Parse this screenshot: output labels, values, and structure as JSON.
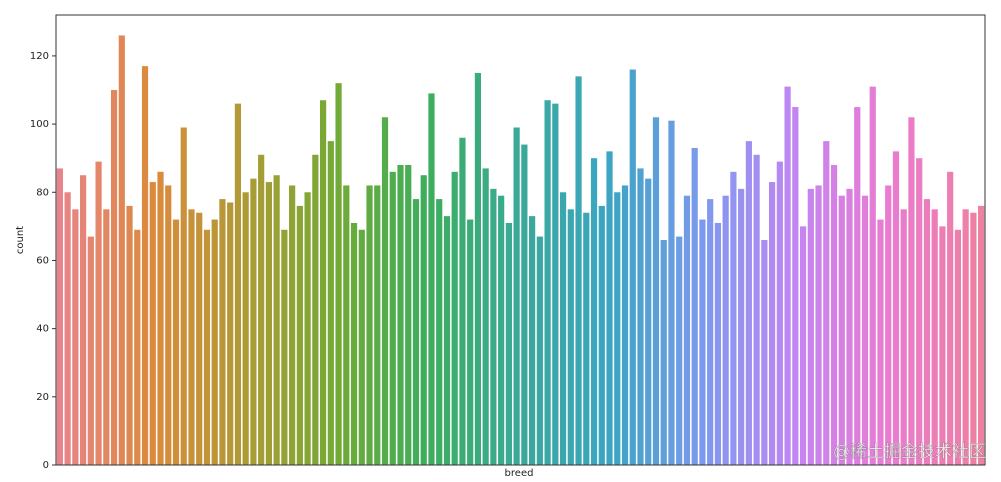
{
  "chart_data": {
    "type": "bar",
    "x_label": "breed",
    "y_label": "count",
    "watermark": "@稀土掘金技术社区",
    "categories": [
      null,
      null,
      null,
      null,
      null,
      null,
      null,
      null,
      null,
      null,
      null,
      null,
      null,
      null,
      null,
      null,
      null,
      null,
      null,
      null,
      null,
      null,
      null,
      null,
      null,
      null,
      null,
      null,
      null,
      null,
      null,
      null,
      null,
      null,
      null,
      null,
      null,
      null,
      null,
      null,
      null,
      null,
      null,
      null,
      null,
      null,
      null,
      null,
      null,
      null,
      null,
      null,
      null,
      null,
      null,
      null,
      null,
      null,
      null,
      null,
      null,
      null,
      null,
      null,
      null,
      null,
      null,
      null,
      null,
      null,
      null,
      null,
      null,
      null,
      null,
      null,
      null,
      null,
      null,
      null,
      null,
      null,
      null,
      null,
      null,
      null,
      null,
      null,
      null,
      null,
      null,
      null,
      null,
      null,
      null,
      null,
      null,
      null,
      null,
      null,
      null,
      null,
      null,
      null,
      null,
      null,
      null,
      null,
      null,
      null,
      null,
      null,
      null,
      null,
      null,
      null,
      null,
      null,
      null,
      null
    ],
    "values": [
      87,
      80,
      75,
      85,
      67,
      89,
      75,
      110,
      126,
      76,
      69,
      117,
      83,
      86,
      82,
      72,
      99,
      75,
      74,
      69,
      72,
      78,
      77,
      106,
      80,
      84,
      91,
      83,
      85,
      69,
      82,
      76,
      80,
      91,
      107,
      95,
      112,
      82,
      71,
      69,
      82,
      82,
      102,
      86,
      88,
      88,
      78,
      85,
      109,
      78,
      73,
      86,
      96,
      72,
      115,
      87,
      81,
      79,
      71,
      99,
      94,
      73,
      67,
      107,
      106,
      80,
      75,
      114,
      74,
      90,
      76,
      92,
      80,
      82,
      116,
      87,
      84,
      102,
      66,
      101,
      67,
      79,
      93,
      72,
      78,
      71,
      79,
      86,
      81,
      95,
      91,
      66,
      83,
      89,
      111,
      105,
      70,
      81,
      82,
      95,
      88,
      79,
      81,
      105,
      79,
      111,
      72,
      82,
      92,
      75,
      102,
      90,
      78,
      75,
      70,
      86,
      69,
      75,
      74,
      76
    ],
    "palette": [
      "#e8838b",
      "#db8a3c",
      "#ae9a35",
      "#72aa35",
      "#3cae5c",
      "#3aa99a",
      "#3ba5c4",
      "#7e99f0",
      "#c385f2",
      "#ea7bd0",
      "#ee80a2"
    ],
    "ylim": [
      0,
      132
    ],
    "yticks": [
      0,
      20,
      40,
      60,
      80,
      100,
      120
    ]
  }
}
